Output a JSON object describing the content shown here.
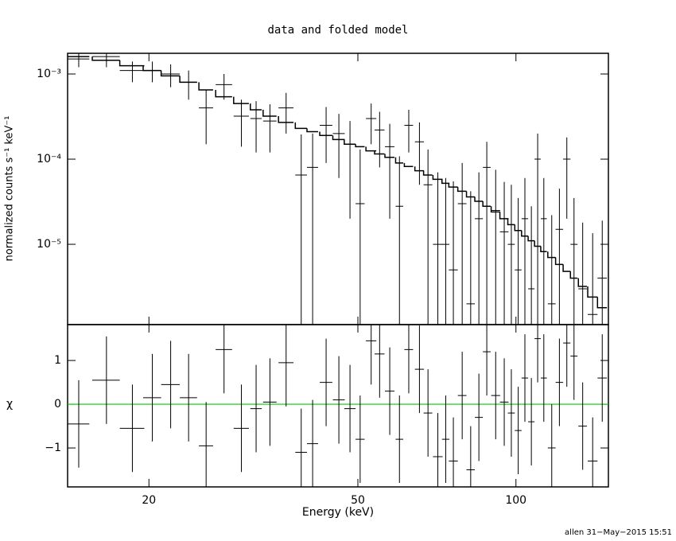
{
  "chart_data": [
    {
      "type": "errorbar",
      "title": "data and folded model",
      "ylabel": "normalized counts s⁻¹ keV⁻¹",
      "log_y": true,
      "log_x": true,
      "color": "#000000",
      "xlim": [
        14,
        150
      ],
      "xticks": [
        20,
        50,
        100
      ],
      "ylim": [
        1.14e-06,
        0.00175
      ],
      "yticks": [
        {
          "value": 0.001,
          "label": "10⁻³"
        },
        {
          "value": 0.0001,
          "label": "10⁻⁴"
        },
        {
          "value": 1e-05,
          "label": "10⁻⁵"
        }
      ],
      "x": [
        14.7,
        16.6,
        18.6,
        20.3,
        22.0,
        23.8,
        25.7,
        27.8,
        30.0,
        32.0,
        34.0,
        36.5,
        39.0,
        41.0,
        43.5,
        46.0,
        48.3,
        50.5,
        53.0,
        55.0,
        57.5,
        60.0,
        62.5,
        65.5,
        68.0,
        71.0,
        73.5,
        76.0,
        79.0,
        82.0,
        85.0,
        88.0,
        91.5,
        95.0,
        98.0,
        101,
        104,
        107,
        110,
        113,
        117,
        121,
        125,
        129,
        134,
        140,
        146
      ],
      "xerr": [
        0.7,
        1.0,
        1.0,
        0.8,
        0.9,
        0.9,
        0.8,
        1.0,
        1.0,
        0.8,
        1.0,
        1.2,
        1.0,
        1.0,
        1.2,
        1.2,
        1.2,
        1.0,
        1.2,
        1.2,
        1.2,
        1.0,
        1.2,
        1.3,
        1.3,
        1.5,
        1.2,
        1.5,
        1.5,
        1.5,
        1.5,
        1.5,
        1.8,
        1.8,
        1.5,
        1.5,
        1.5,
        1.5,
        1.5,
        1.5,
        2.0,
        2.0,
        2.0,
        2.0,
        2.5,
        3.0,
        3.0
      ],
      "values": [
        0.0015,
        0.0016,
        0.0011,
        0.0011,
        0.001,
        0.0008,
        0.0004,
        0.00075,
        0.00032,
        0.0003,
        0.00028,
        0.0004,
        6.5e-05,
        8e-05,
        0.00025,
        0.0002,
        0.00015,
        3e-05,
        0.0003,
        0.00022,
        0.00014,
        2.8e-05,
        0.00025,
        0.00016,
        5e-05,
        1e-05,
        1e-05,
        5e-06,
        3e-05,
        2e-06,
        2e-05,
        8e-05,
        2.5e-05,
        1.4e-05,
        1e-05,
        5e-06,
        2e-05,
        3e-06,
        0.0001,
        2e-05,
        2e-06,
        1.5e-05,
        0.0001,
        1e-05,
        3e-06,
        1.5e-06,
        4e-06
      ],
      "errors": [
        0.0003,
        0.0004,
        0.0003,
        0.0003,
        0.0003,
        0.0003,
        0.00025,
        0.00025,
        0.00018,
        0.00018,
        0.00016,
        0.0002,
        0.00013,
        0.00012,
        0.00016,
        0.00014,
        0.00013,
        0.0001,
        0.00015,
        0.00014,
        0.00012,
        8e-05,
        0.00013,
        0.00011,
        8e-05,
        6e-05,
        5e-05,
        5e-05,
        6e-05,
        4e-05,
        5e-05,
        8e-05,
        5e-05,
        4e-05,
        4e-05,
        3e-05,
        4e-05,
        2.5e-05,
        0.0001,
        4e-05,
        2e-05,
        3e-05,
        8e-05,
        2.5e-05,
        1.5e-05,
        1.2e-05,
        1.5e-05
      ],
      "model": [
        0.0016,
        0.00145,
        0.00125,
        0.0011,
        0.00095,
        0.0008,
        0.00065,
        0.00054,
        0.00045,
        0.00038,
        0.00032,
        0.00027,
        0.00023,
        0.00021,
        0.00019,
        0.00017,
        0.00015,
        0.00014,
        0.000125,
        0.000115,
        0.000105,
        9e-05,
        8.2e-05,
        7.3e-05,
        6.5e-05,
        5.8e-05,
        5.2e-05,
        4.7e-05,
        4.2e-05,
        3.6e-05,
        3.2e-05,
        2.8e-05,
        2.4e-05,
        2e-05,
        1.7e-05,
        1.45e-05,
        1.25e-05,
        1.1e-05,
        9.5e-06,
        8.2e-06,
        7e-06,
        5.8e-06,
        4.8e-06,
        4e-06,
        3.2e-06,
        2.4e-06,
        1.8e-06
      ]
    },
    {
      "type": "residuals",
      "xlabel": "Energy (keV)",
      "ylabel": "χ",
      "log_x": true,
      "color": "#000000",
      "zero_line_color": "#00cc00",
      "xlim": [
        14,
        150
      ],
      "xticks": [
        20,
        50,
        100
      ],
      "ylim": [
        -1.89,
        1.82
      ],
      "yticks": [
        1,
        0,
        {
          "value": -1,
          "label": "−1"
        }
      ],
      "x": [
        14.7,
        16.6,
        18.6,
        20.3,
        22.0,
        23.8,
        25.7,
        27.8,
        30.0,
        32.0,
        34.0,
        36.5,
        39.0,
        41.0,
        43.5,
        46.0,
        48.3,
        50.5,
        53.0,
        55.0,
        57.5,
        60.0,
        62.5,
        65.5,
        68.0,
        71.0,
        73.5,
        76.0,
        79.0,
        82.0,
        85.0,
        88.0,
        91.5,
        95.0,
        98.0,
        101,
        104,
        107,
        110,
        113,
        117,
        121,
        125,
        129,
        134,
        140,
        146
      ],
      "xerr": [
        0.7,
        1.0,
        1.0,
        0.8,
        0.9,
        0.9,
        0.8,
        1.0,
        1.0,
        0.8,
        1.0,
        1.2,
        1.0,
        1.0,
        1.2,
        1.2,
        1.2,
        1.0,
        1.2,
        1.2,
        1.2,
        1.0,
        1.2,
        1.3,
        1.3,
        1.5,
        1.2,
        1.5,
        1.5,
        1.5,
        1.5,
        1.5,
        1.8,
        1.8,
        1.5,
        1.5,
        1.5,
        1.5,
        1.5,
        1.5,
        2.0,
        2.0,
        2.0,
        2.0,
        2.5,
        3.0,
        3.0
      ],
      "values": [
        -0.45,
        0.55,
        -0.55,
        0.15,
        0.45,
        0.15,
        -0.95,
        1.25,
        -0.55,
        -0.1,
        0.05,
        0.95,
        -1.1,
        -0.9,
        0.5,
        0.1,
        -0.1,
        -0.8,
        1.45,
        1.15,
        0.3,
        -0.8,
        1.25,
        0.8,
        -0.2,
        -1.2,
        -0.8,
        -1.3,
        0.2,
        -1.5,
        -0.3,
        1.2,
        0.2,
        0.05,
        -0.2,
        -0.6,
        0.6,
        -0.4,
        1.5,
        0.6,
        -1.0,
        0.5,
        1.4,
        1.1,
        -0.5,
        -1.3,
        0.6
      ],
      "errors": [
        1,
        1,
        1,
        1,
        1,
        1,
        1,
        1,
        1,
        1,
        1,
        1,
        1,
        1,
        1,
        1,
        1,
        1,
        1,
        1,
        1,
        1,
        1,
        1,
        1,
        1,
        1,
        1,
        1,
        1,
        1,
        1,
        1,
        1,
        1,
        1,
        1,
        1,
        1,
        1,
        1,
        1,
        1,
        1,
        1,
        1,
        1
      ]
    }
  ],
  "footer": "allen 31−May−2015 15:51"
}
